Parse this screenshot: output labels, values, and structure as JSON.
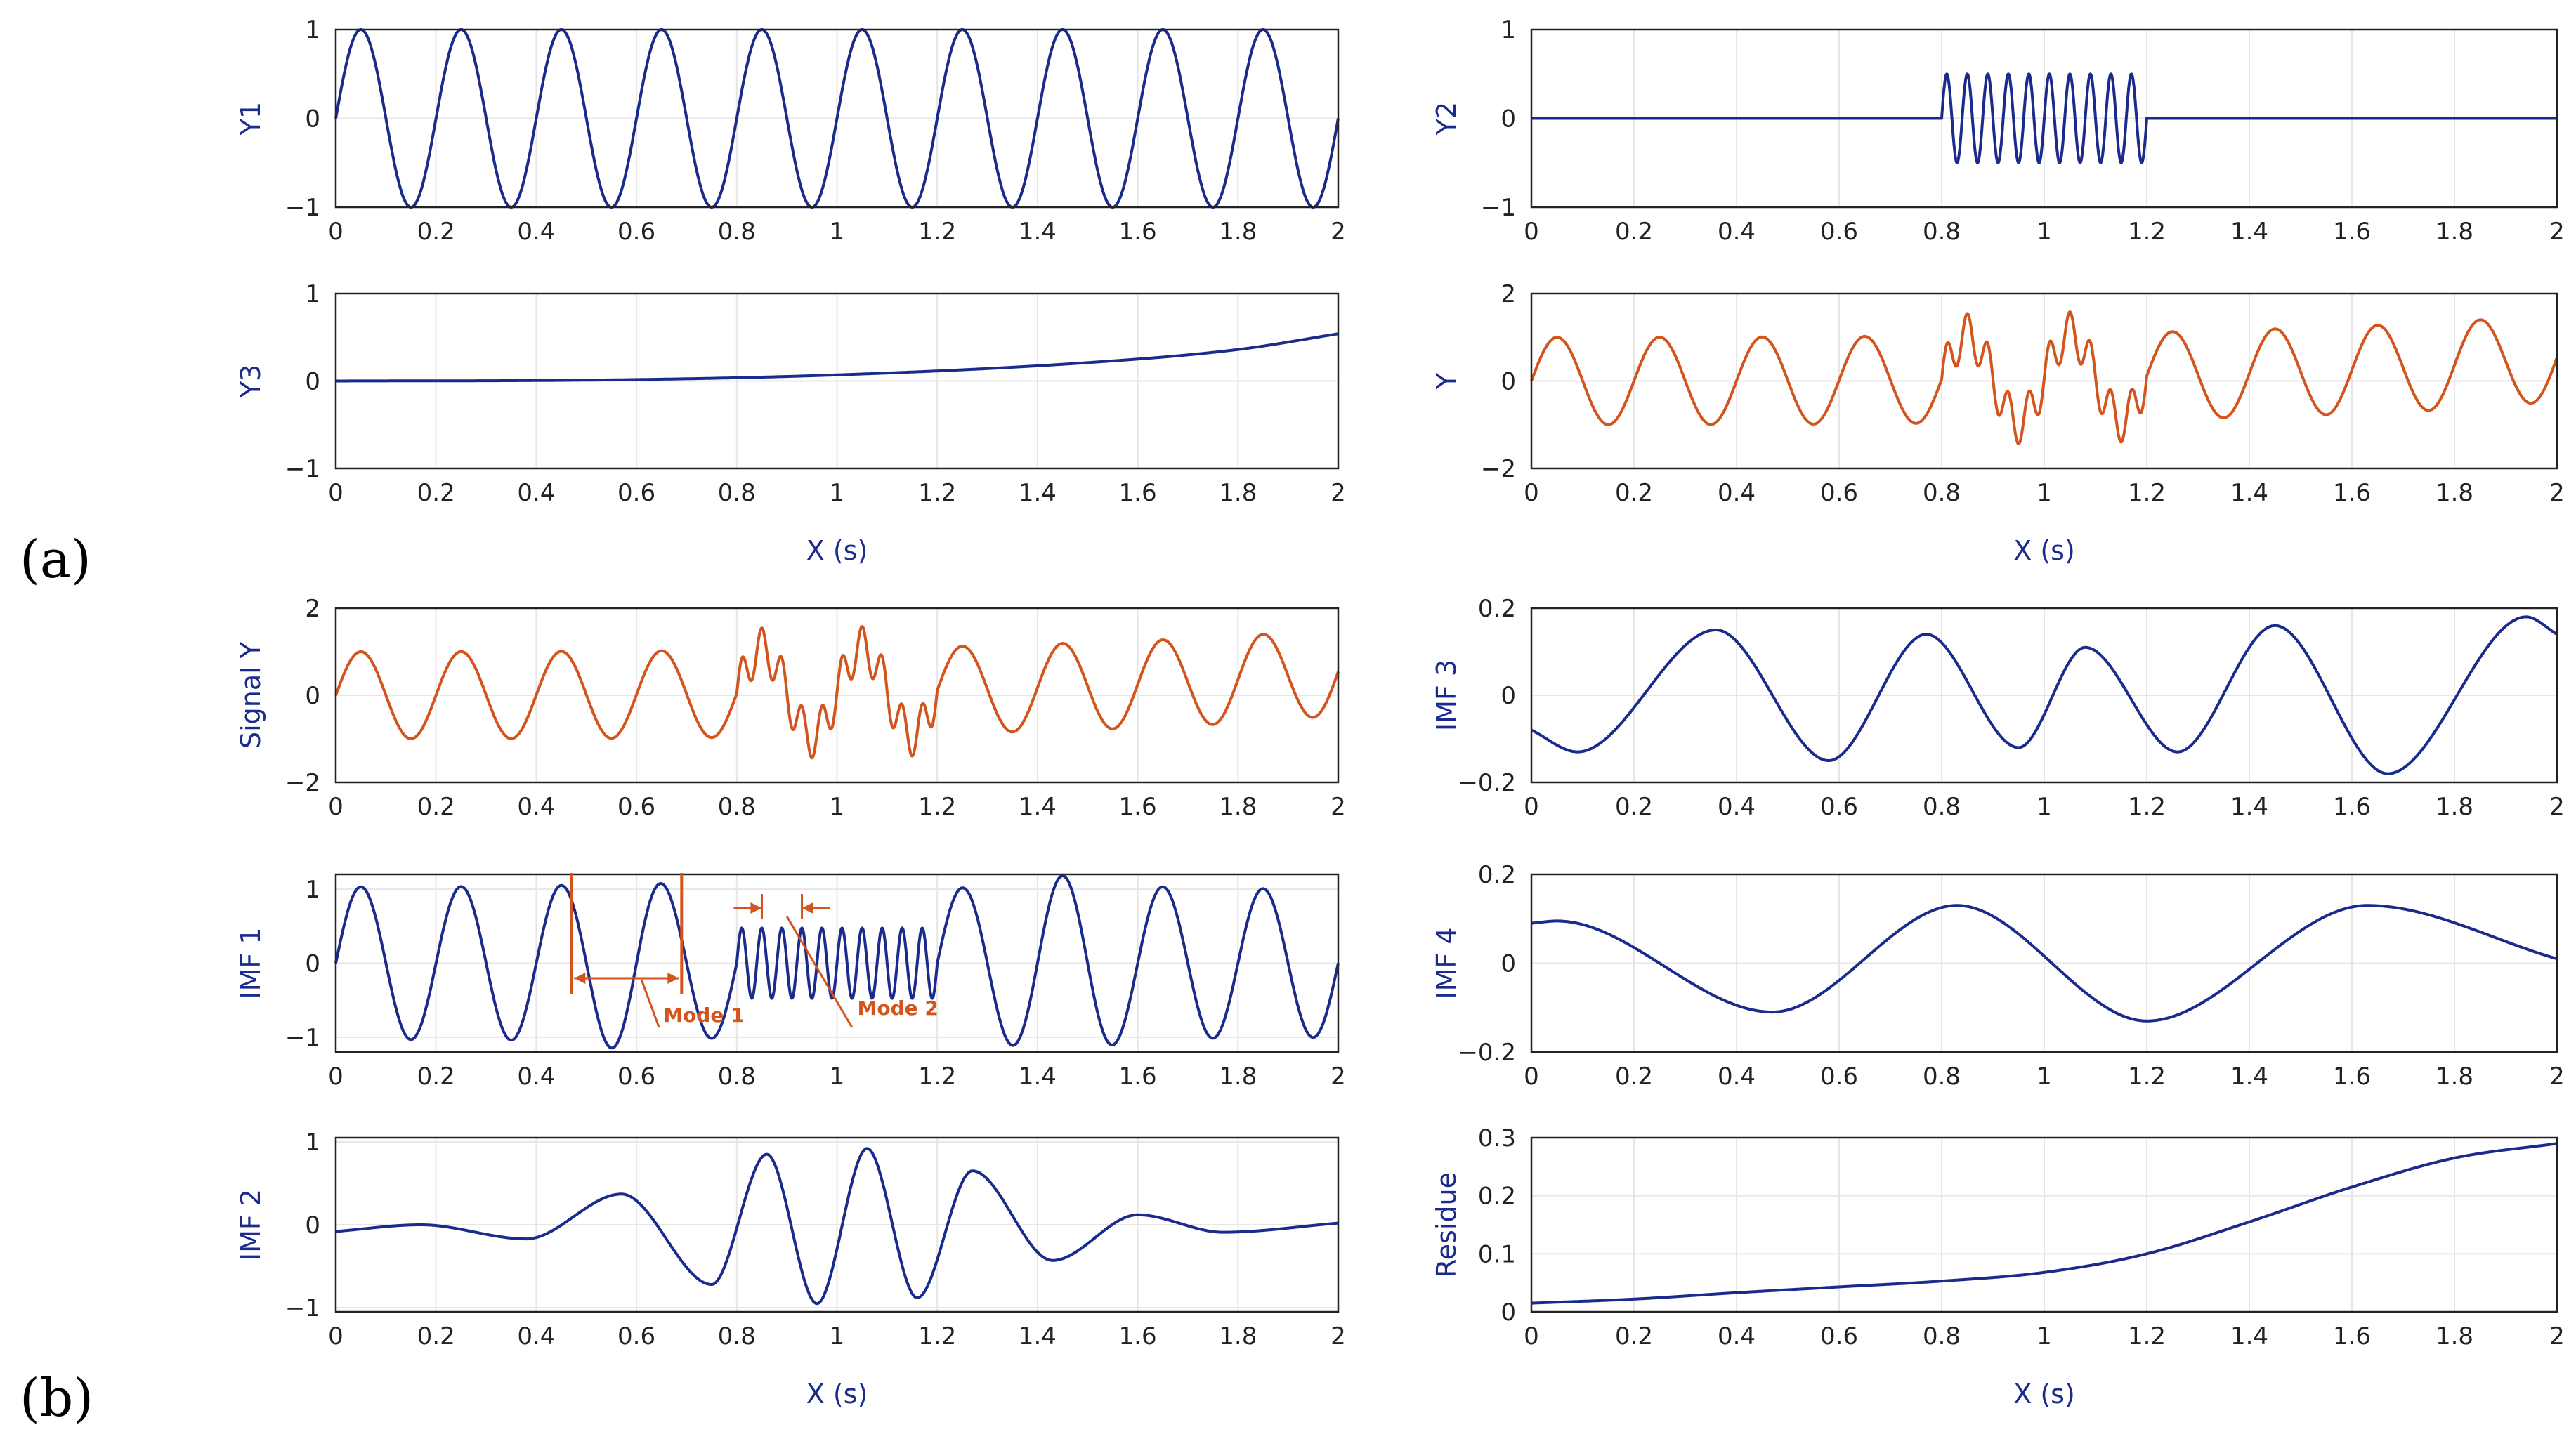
{
  "panel_labels": [
    "(a)",
    "(b)"
  ],
  "colors": {
    "blue": "#1a2b8c",
    "orange": "#d4541d",
    "grid": "#e6e6e6",
    "frame": "#222222",
    "tick_text": "#222222"
  },
  "chart_data": [
    {
      "id": "Y1",
      "type": "line",
      "panel": "(a)",
      "ylabel": "Y1",
      "xlabel": "",
      "xlim": [
        0,
        2
      ],
      "ylim": [
        -1,
        1
      ],
      "xticks": [
        "0",
        "0.2",
        "0.4",
        "0.6",
        "0.8",
        "1",
        "1.2",
        "1.4",
        "1.6",
        "1.8",
        "2"
      ],
      "yticks": [
        "1",
        "0",
        "−1"
      ],
      "grid": true,
      "color": "blue",
      "series": [
        {
          "signal": "sin(2π·5·x)"
        }
      ]
    },
    {
      "id": "Y2",
      "type": "line",
      "panel": "(a)",
      "ylabel": "Y2",
      "xlabel": "",
      "xlim": [
        0,
        2
      ],
      "ylim": [
        -1,
        1
      ],
      "xticks": [
        "0",
        "0.2",
        "0.4",
        "0.6",
        "0.8",
        "1",
        "1.2",
        "1.4",
        "1.6",
        "1.8",
        "2"
      ],
      "yticks": [
        "1",
        "0",
        "−1"
      ],
      "grid": true,
      "color": "blue",
      "series": [
        {
          "signal": "0.5·sin(2π·25·x) for 0.8 ≤ x ≤ 1.2, else 0"
        }
      ]
    },
    {
      "id": "Y3",
      "type": "line",
      "panel": "(a)",
      "ylabel": "Y3",
      "xlabel": "X (s)",
      "xlim": [
        0,
        2
      ],
      "ylim": [
        -1,
        1
      ],
      "xticks": [
        "0",
        "0.2",
        "0.4",
        "0.6",
        "0.8",
        "1",
        "1.2",
        "1.4",
        "1.6",
        "1.8",
        "2"
      ],
      "yticks": [
        "1",
        "0",
        "−1"
      ],
      "grid": true,
      "color": "blue",
      "series": [
        {
          "x": [
            0,
            0.5,
            1.0,
            1.5,
            1.8,
            2.0
          ],
          "y": [
            0.0,
            0.01,
            0.07,
            0.21,
            0.36,
            0.54
          ]
        }
      ]
    },
    {
      "id": "Y",
      "type": "line",
      "panel": "(a)",
      "ylabel": "Y",
      "xlabel": "X (s)",
      "xlim": [
        0,
        2
      ],
      "ylim": [
        -2,
        2
      ],
      "xticks": [
        "0",
        "0.2",
        "0.4",
        "0.6",
        "0.8",
        "1",
        "1.2",
        "1.4",
        "1.6",
        "1.8",
        "2"
      ],
      "yticks": [
        "2",
        "0",
        "−2"
      ],
      "grid": true,
      "color": "orange",
      "series": [
        {
          "signal": "Y1 + Y2 + Y3"
        }
      ]
    },
    {
      "id": "Signal Y",
      "type": "line",
      "panel": "(b)",
      "ylabel": "Signal Y",
      "xlabel": "",
      "xlim": [
        0,
        2
      ],
      "ylim": [
        -2,
        2
      ],
      "xticks": [
        "0",
        "0.2",
        "0.4",
        "0.6",
        "0.8",
        "1",
        "1.2",
        "1.4",
        "1.6",
        "1.8",
        "2"
      ],
      "yticks": [
        "2",
        "0",
        "−2"
      ],
      "grid": true,
      "color": "orange",
      "series": [
        {
          "signal": "Y1 + Y2 + Y3"
        }
      ]
    },
    {
      "id": "IMF 1",
      "type": "line",
      "panel": "(b)",
      "ylabel": "IMF 1",
      "xlabel": "",
      "xlim": [
        0,
        2
      ],
      "ylim": [
        -1.2,
        1.2
      ],
      "xticks": [
        "0",
        "0.2",
        "0.4",
        "0.6",
        "0.8",
        "1",
        "1.2",
        "1.4",
        "1.6",
        "1.8",
        "2"
      ],
      "yticks": [
        "1",
        "0",
        "−1"
      ],
      "grid": true,
      "color": "blue",
      "series": [
        {
          "signal": "sin(2π·5·x) outside [0.8, 1.2]; 0.5·sin(2π·25·x) inside; peaks ≈1.05, min ≈−1.18 at 0.58, max ≈1.2 at 1.46"
        }
      ],
      "annotations": [
        {
          "text": "Mode 1",
          "x_start": 0.47,
          "x_end": 0.69,
          "meaning": "one period of 5 Hz component"
        },
        {
          "text": "Mode 2",
          "x_start": 0.85,
          "x_end": 0.93,
          "meaning": "two periods of 25 Hz component"
        }
      ]
    },
    {
      "id": "IMF 2",
      "type": "line",
      "panel": "(b)",
      "ylabel": "IMF 2",
      "xlabel": "X (s)",
      "xlim": [
        0,
        2
      ],
      "ylim": [
        -1.05,
        1.05
      ],
      "xticks": [
        "0",
        "0.2",
        "0.4",
        "0.6",
        "0.8",
        "1",
        "1.2",
        "1.4",
        "1.6",
        "1.8",
        "2"
      ],
      "yticks": [
        "1",
        "0",
        "−1"
      ],
      "grid": true,
      "color": "blue",
      "series": [
        {
          "x": [
            0.0,
            0.17,
            0.38,
            0.57,
            0.75,
            0.86,
            0.96,
            1.06,
            1.16,
            1.27,
            1.43,
            1.6,
            1.77,
            2.0
          ],
          "y": [
            -0.08,
            0.0,
            -0.17,
            0.37,
            -0.72,
            0.85,
            -0.95,
            0.92,
            -0.88,
            0.65,
            -0.43,
            0.12,
            -0.09,
            0.02
          ]
        }
      ]
    },
    {
      "id": "IMF 3",
      "type": "line",
      "panel": "(b)",
      "ylabel": "IMF 3",
      "xlabel": "",
      "xlim": [
        0,
        2
      ],
      "ylim": [
        -0.2,
        0.2
      ],
      "xticks": [
        "0",
        "0.2",
        "0.4",
        "0.6",
        "0.8",
        "1",
        "1.2",
        "1.4",
        "1.6",
        "1.8",
        "2"
      ],
      "yticks": [
        "0.2",
        "0",
        "−0.2"
      ],
      "grid": true,
      "color": "blue",
      "series": [
        {
          "x": [
            0.0,
            0.09,
            0.36,
            0.58,
            0.77,
            0.95,
            1.08,
            1.26,
            1.45,
            1.67,
            1.94,
            2.0
          ],
          "y": [
            -0.08,
            -0.13,
            0.15,
            -0.15,
            0.14,
            -0.12,
            0.11,
            -0.13,
            0.16,
            -0.18,
            0.18,
            0.14
          ]
        }
      ]
    },
    {
      "id": "IMF 4",
      "type": "line",
      "panel": "(b)",
      "ylabel": "IMF 4",
      "xlabel": "",
      "xlim": [
        0,
        2
      ],
      "ylim": [
        -0.2,
        0.2
      ],
      "xticks": [
        "0",
        "0.2",
        "0.4",
        "0.6",
        "0.8",
        "1",
        "1.2",
        "1.4",
        "1.6",
        "1.8",
        "2"
      ],
      "yticks": [
        "0.2",
        "0",
        "−0.2"
      ],
      "grid": true,
      "color": "blue",
      "series": [
        {
          "x": [
            0.0,
            0.05,
            0.47,
            0.83,
            1.2,
            1.63,
            2.0
          ],
          "y": [
            0.09,
            0.095,
            -0.11,
            0.13,
            -0.13,
            0.13,
            0.01
          ]
        }
      ]
    },
    {
      "id": "Residue",
      "type": "line",
      "panel": "(b)",
      "ylabel": "Residue",
      "xlabel": "X (s)",
      "xlim": [
        0,
        2
      ],
      "ylim": [
        0,
        0.3
      ],
      "xticks": [
        "0",
        "0.2",
        "0.4",
        "0.6",
        "0.8",
        "1",
        "1.2",
        "1.4",
        "1.6",
        "1.8",
        "2"
      ],
      "yticks": [
        "0.3",
        "0.2",
        "0.1",
        "0"
      ],
      "grid": true,
      "color": "blue",
      "series": [
        {
          "x": [
            0.0,
            0.2,
            0.4,
            0.6,
            0.8,
            1.0,
            1.2,
            1.4,
            1.6,
            1.8,
            2.0
          ],
          "y": [
            0.015,
            0.022,
            0.033,
            0.043,
            0.053,
            0.068,
            0.1,
            0.155,
            0.215,
            0.265,
            0.29
          ]
        }
      ]
    }
  ]
}
